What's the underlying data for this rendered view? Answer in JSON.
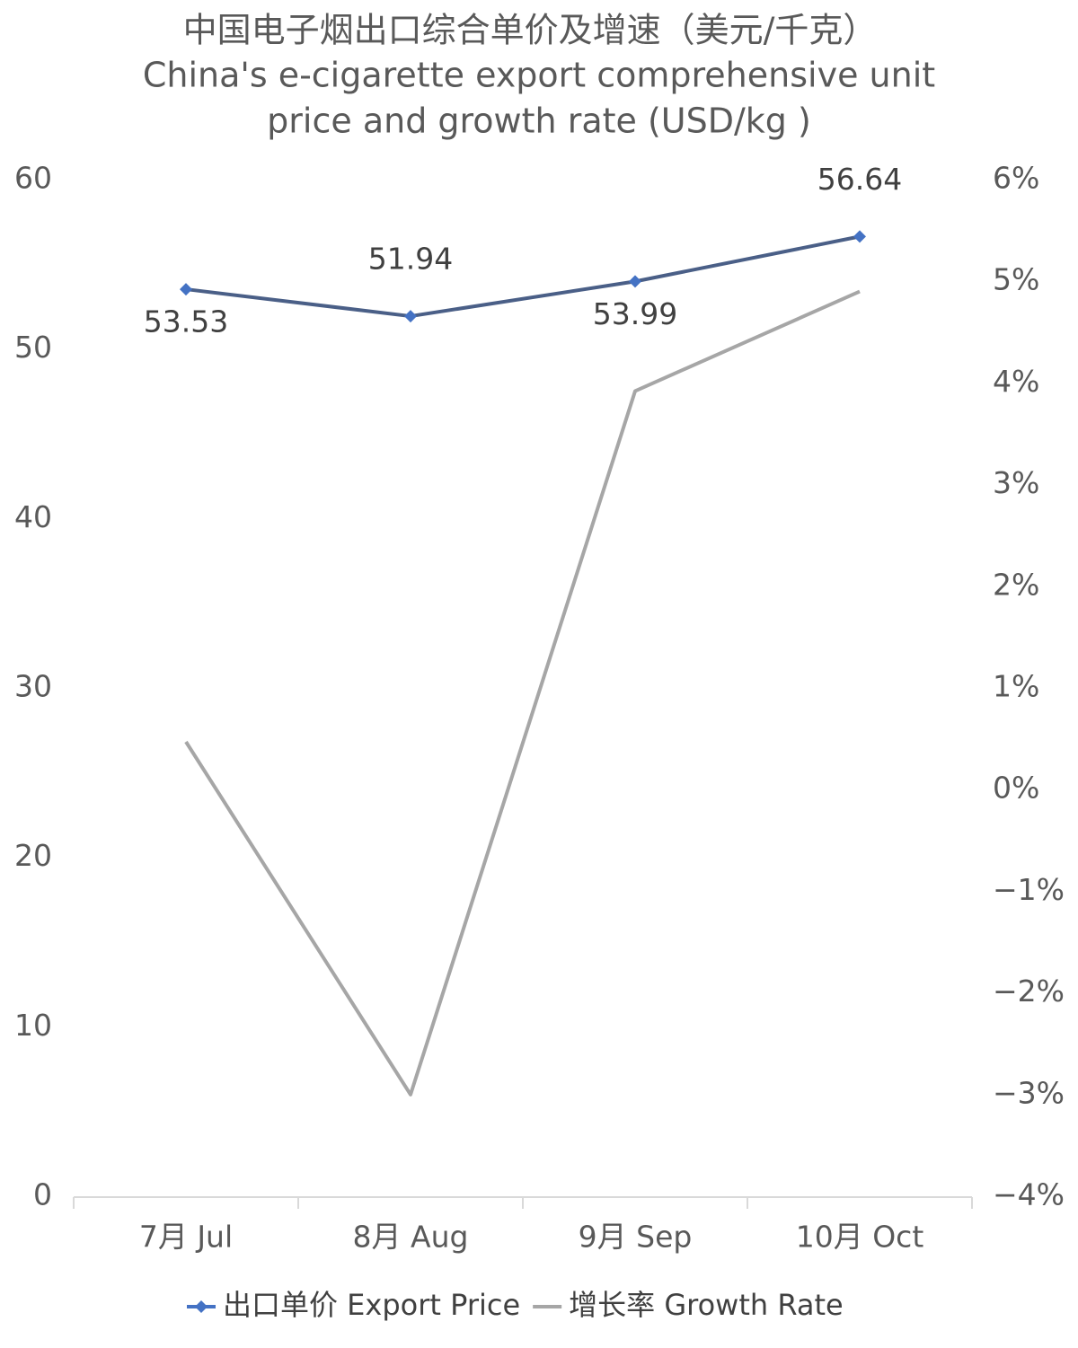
{
  "chart_data": {
    "type": "line",
    "title": [
      "中国电子烟出口综合单价及增速（美元/千克）",
      "China's e-cigarette export comprehensive unit",
      "price and growth rate (USD/kg )"
    ],
    "categories": [
      "7月 Jul",
      "8月 Aug",
      "9月 Sep",
      "10月 Oct"
    ],
    "series": [
      {
        "name": "出口单价 Export Price",
        "color": "#4a5f87",
        "marker_color": "#4472c4",
        "values": [
          53.53,
          51.94,
          53.99,
          56.64
        ],
        "data_labels": true
      },
      {
        "name": "增长率 Growth Rate",
        "color": "#a6a6a6",
        "values": [
          0.47,
          -3.0,
          3.92,
          4.9
        ],
        "axis": "y2"
      }
    ],
    "ylim": [
      0,
      60
    ],
    "yticks": [
      0,
      10,
      20,
      30,
      40,
      50,
      60
    ],
    "y2lim": [
      -4,
      6
    ],
    "y2ticks": [
      {
        "value": -4,
        "label": "−4%"
      },
      {
        "value": -3,
        "label": "−3%"
      },
      {
        "value": -2,
        "label": "−2%"
      },
      {
        "value": -1,
        "label": "−1%"
      },
      {
        "value": 0,
        "label": "0%"
      },
      {
        "value": 1,
        "label": "1%"
      },
      {
        "value": 2,
        "label": "2%"
      },
      {
        "value": 3,
        "label": "3%"
      },
      {
        "value": 4,
        "label": "4%"
      },
      {
        "value": 5,
        "label": "5%"
      },
      {
        "value": 6,
        "label": "6%"
      }
    ],
    "grid": false,
    "legend": "bottom"
  }
}
